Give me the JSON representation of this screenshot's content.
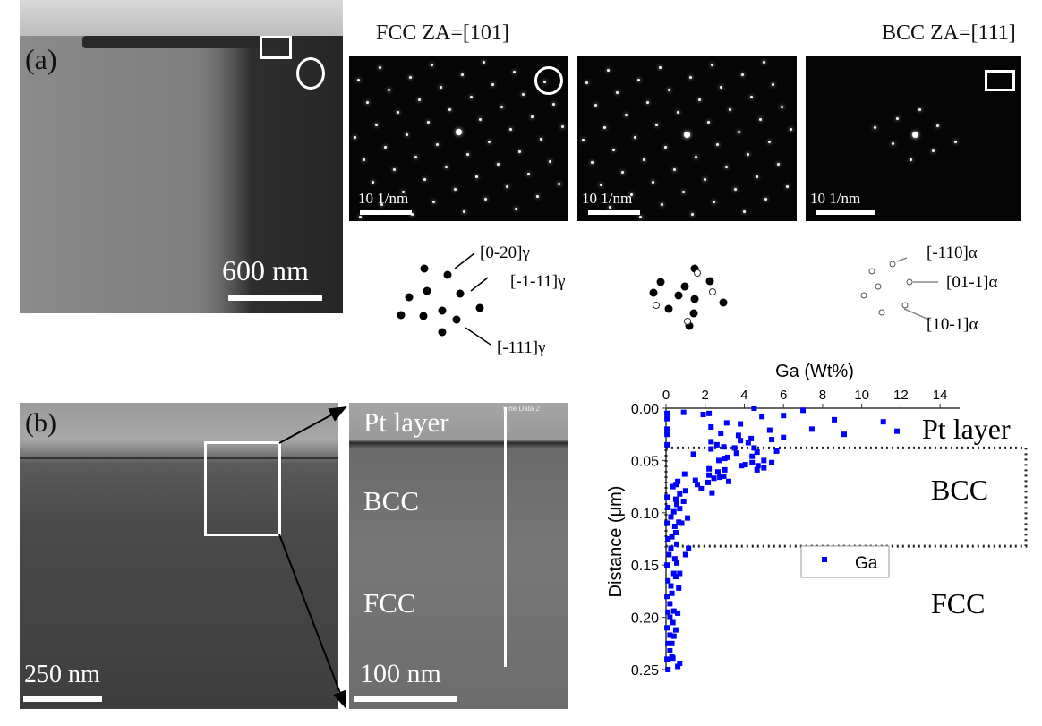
{
  "panel_a": {
    "label": "(a)",
    "scale_bar": "600 nm",
    "dp_titles": [
      "FCC ZA=[101]",
      "BCC ZA=[111]"
    ],
    "dp_scale": "10 1/nm",
    "schematic_labels": [
      "[0-20]γ",
      "[-1-11]γ",
      "[-111]γ",
      "[-110]α",
      "[01-1]α",
      "[10-1]α"
    ]
  },
  "panel_b": {
    "label": "(b)",
    "scale_bar_left": "250 nm",
    "scale_bar_mid": "100 nm",
    "line_label": "Line Data 2",
    "regions": [
      "Pt layer",
      "BCC",
      "FCC"
    ]
  },
  "chart_data": {
    "type": "scatter",
    "xlabel": "Ga (Wt%)",
    "ylabel": "Distance (μm)",
    "xlim": [
      0,
      15
    ],
    "ylim": [
      0.25,
      0
    ],
    "xticks": [
      "0",
      "2",
      "4",
      "6",
      "8",
      "10",
      "12",
      "14"
    ],
    "yticks": [
      "0.00",
      "0.05",
      "0.10",
      "0.15",
      "0.20",
      "0.25"
    ],
    "legend": "Ga",
    "legend_placement": "center",
    "color": "#0000ff",
    "annotations": [
      "Pt layer",
      "BCC",
      "FCC"
    ],
    "bcc_box_y": [
      0.038,
      0.132
    ],
    "series": [
      {
        "name": "Ga",
        "points": [
          [
            0.9,
            0.004
          ],
          [
            1.9,
            0.006
          ],
          [
            2.2,
            0.005
          ],
          [
            4.5,
            0.0
          ],
          [
            4.9,
            0.008
          ],
          [
            6.0,
            0.007
          ],
          [
            7.0,
            0.002
          ],
          [
            8.6,
            0.011
          ],
          [
            11.1,
            0.013
          ],
          [
            11.8,
            0.022
          ],
          [
            9.1,
            0.025
          ],
          [
            7.45,
            0.02
          ],
          [
            6.0,
            0.028
          ],
          [
            5.3,
            0.021
          ],
          [
            5.4,
            0.03
          ],
          [
            5.65,
            0.041
          ],
          [
            5.4,
            0.052
          ],
          [
            5.0,
            0.05
          ],
          [
            5.0,
            0.057
          ],
          [
            4.65,
            0.059
          ],
          [
            4.7,
            0.055
          ],
          [
            4.65,
            0.042
          ],
          [
            4.5,
            0.038
          ],
          [
            4.4,
            0.046
          ],
          [
            4.4,
            0.052
          ],
          [
            4.35,
            0.029
          ],
          [
            4.2,
            0.033
          ],
          [
            3.8,
            0.015
          ],
          [
            3.8,
            0.031
          ],
          [
            3.7,
            0.026
          ],
          [
            3.6,
            0.043
          ],
          [
            3.5,
            0.038
          ],
          [
            3.85,
            0.055
          ],
          [
            4.05,
            0.054
          ],
          [
            3.1,
            0.014
          ],
          [
            3.15,
            0.047
          ],
          [
            3.0,
            0.048
          ],
          [
            3.2,
            0.07
          ],
          [
            2.95,
            0.037
          ],
          [
            3.0,
            0.059
          ],
          [
            2.95,
            0.065
          ],
          [
            2.8,
            0.024
          ],
          [
            2.7,
            0.05
          ],
          [
            2.65,
            0.061
          ],
          [
            2.75,
            0.066
          ],
          [
            2.6,
            0.035
          ],
          [
            2.3,
            0.032
          ],
          [
            2.3,
            0.039
          ],
          [
            2.3,
            0.018
          ],
          [
            2.45,
            0.067
          ],
          [
            2.2,
            0.058
          ],
          [
            2.2,
            0.064
          ],
          [
            2.15,
            0.071
          ],
          [
            2.35,
            0.081
          ],
          [
            1.8,
            0.077
          ],
          [
            1.6,
            0.073
          ],
          [
            1.5,
            0.069
          ],
          [
            1.4,
            0.044
          ],
          [
            0.95,
            0.063
          ],
          [
            1.0,
            0.079
          ],
          [
            1.1,
            0.105
          ],
          [
            0.9,
            0.089
          ],
          [
            0.8,
            0.11
          ],
          [
            0.65,
            0.109
          ],
          [
            1.15,
            0.134
          ],
          [
            1.0,
            0.14
          ],
          [
            0.6,
            0.07
          ],
          [
            0.5,
            0.073
          ],
          [
            0.35,
            0.075
          ],
          [
            0.7,
            0.082
          ],
          [
            0.5,
            0.087
          ],
          [
            0.55,
            0.092
          ],
          [
            0.7,
            0.096
          ],
          [
            0.4,
            0.099
          ],
          [
            0.25,
            0.104
          ],
          [
            0.45,
            0.113
          ],
          [
            0.5,
            0.119
          ],
          [
            0.3,
            0.123
          ],
          [
            0.55,
            0.13
          ],
          [
            0.25,
            0.134
          ],
          [
            0.45,
            0.144
          ],
          [
            0.55,
            0.148
          ],
          [
            0.4,
            0.158
          ],
          [
            0.7,
            0.158
          ],
          [
            0.5,
            0.161
          ],
          [
            0.25,
            0.17
          ],
          [
            0.65,
            0.172
          ],
          [
            0.3,
            0.177
          ],
          [
            0.2,
            0.187
          ],
          [
            0.4,
            0.194
          ],
          [
            0.6,
            0.196
          ],
          [
            0.2,
            0.2
          ],
          [
            0.35,
            0.205
          ],
          [
            0.5,
            0.212
          ],
          [
            0.2,
            0.217
          ],
          [
            0.4,
            0.218
          ],
          [
            0.3,
            0.225
          ],
          [
            0.2,
            0.232
          ],
          [
            0.3,
            0.238
          ],
          [
            0.35,
            0.239
          ],
          [
            0.7,
            0.244
          ],
          [
            0.6,
            0.247
          ],
          [
            0.05,
            0.005
          ],
          [
            0.05,
            0.01
          ],
          [
            0.05,
            0.02
          ],
          [
            0.05,
            0.025
          ],
          [
            0.05,
            0.035
          ],
          [
            0.05,
            0.085
          ],
          [
            0.1,
            0.095
          ],
          [
            0.05,
            0.11
          ],
          [
            0.1,
            0.125
          ],
          [
            0.15,
            0.14
          ],
          [
            0.05,
            0.15
          ],
          [
            0.1,
            0.165
          ],
          [
            0.05,
            0.18
          ],
          [
            0.1,
            0.195
          ],
          [
            0.05,
            0.21
          ],
          [
            0.1,
            0.225
          ],
          [
            0.05,
            0.24
          ],
          [
            0.1,
            0.25
          ]
        ]
      }
    ]
  }
}
